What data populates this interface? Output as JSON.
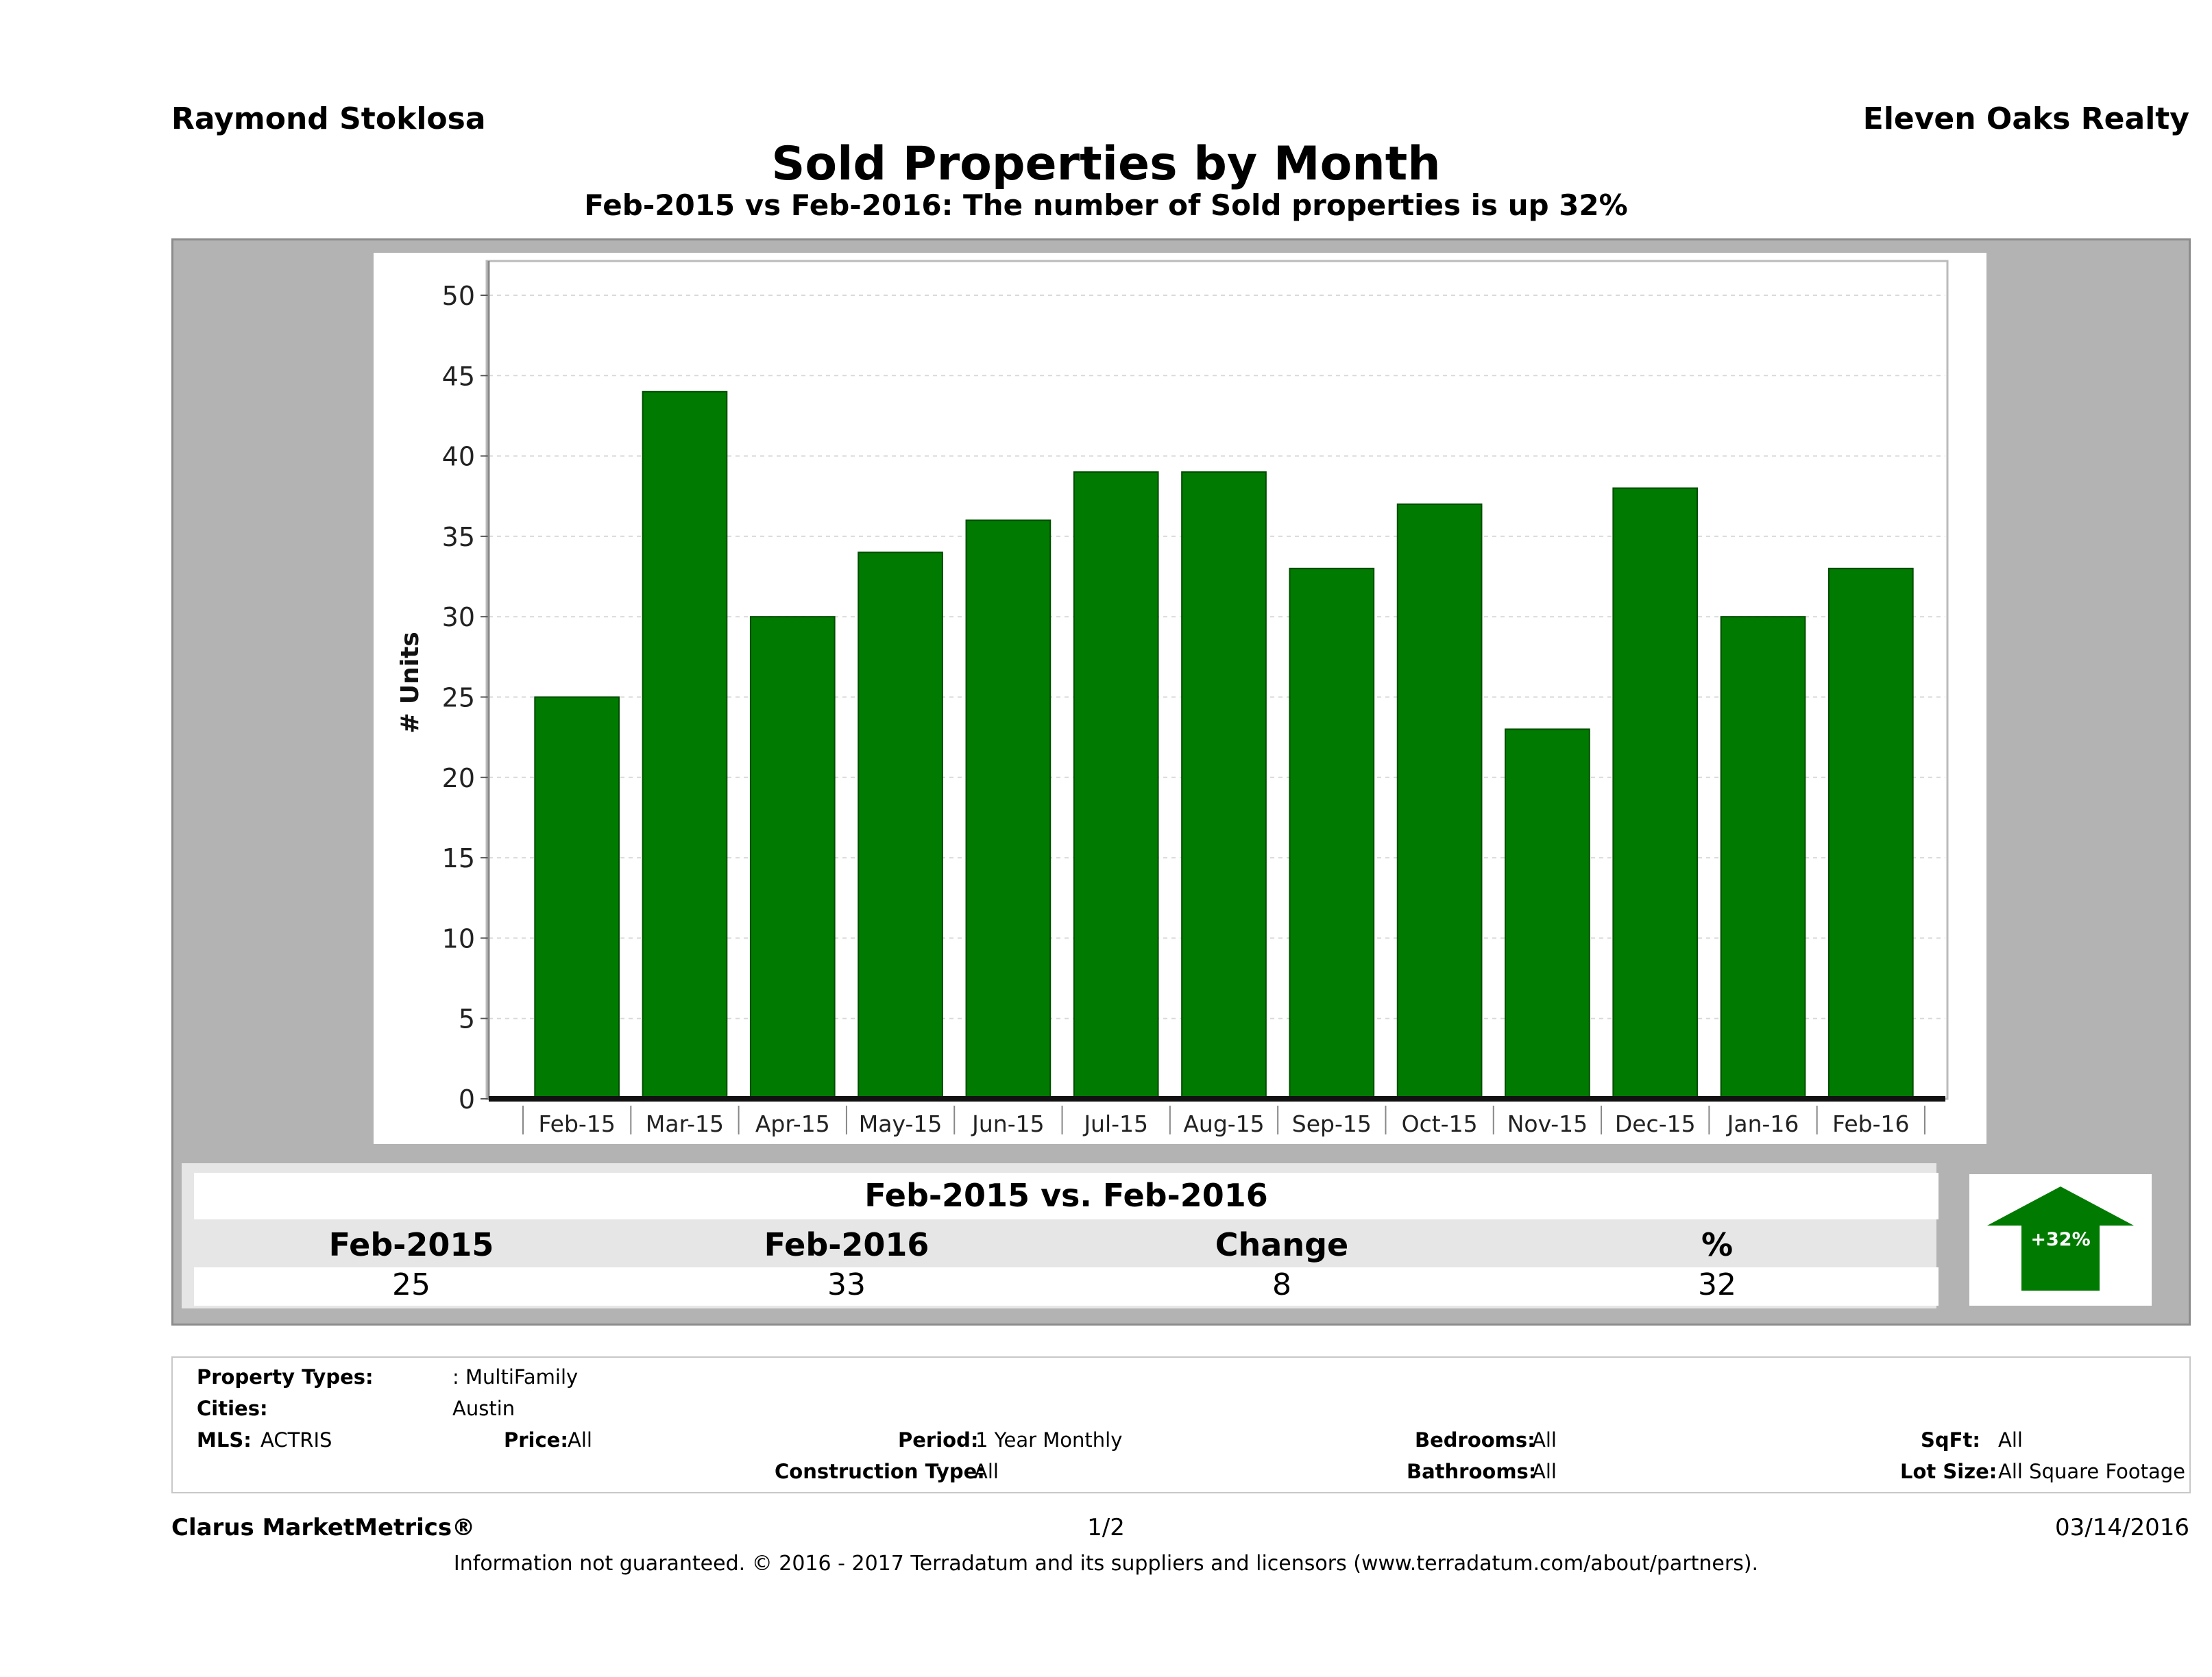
{
  "header": {
    "agent": "Raymond Stoklosa",
    "brokerage": "Eleven Oaks Realty",
    "title": "Sold Properties by Month",
    "subtitle": "Feb-2015 vs Feb-2016: The number of Sold  properties is up 32%"
  },
  "chart_data": {
    "type": "bar",
    "categories": [
      "Feb-15",
      "Mar-15",
      "Apr-15",
      "May-15",
      "Jun-15",
      "Jul-15",
      "Aug-15",
      "Sep-15",
      "Oct-15",
      "Nov-15",
      "Dec-15",
      "Jan-16",
      "Feb-16"
    ],
    "values": [
      25,
      44,
      30,
      34,
      36,
      39,
      39,
      33,
      37,
      23,
      38,
      30,
      33
    ],
    "ylabel": "# Units",
    "ylim": [
      0,
      50
    ],
    "yticks": [
      0,
      5,
      10,
      15,
      20,
      25,
      30,
      35,
      40,
      45,
      50
    ],
    "grid": true,
    "bar_color": "#007a00"
  },
  "summary": {
    "title": "Feb-2015 vs. Feb-2016",
    "columns": [
      {
        "label": "Feb-2015",
        "value": "25"
      },
      {
        "label": "Feb-2016",
        "value": "33"
      },
      {
        "label": "Change",
        "value": "8"
      },
      {
        "label": "%",
        "value": "32"
      }
    ],
    "arrow_label": "+32%",
    "arrow_color": "#007a00"
  },
  "criteria": {
    "property_types_label": "Property Types:",
    "property_types_value": ": MultiFamily",
    "cities_label": "Cities:",
    "cities_value": "Austin",
    "mls_label": "MLS:",
    "mls_value": "ACTRIS",
    "price_label": "Price:",
    "price_value": "All",
    "period_label": "Period:",
    "period_value": "1 Year Monthly",
    "construction_label": "Construction Type:",
    "construction_value": "All",
    "bedrooms_label": "Bedrooms:",
    "bedrooms_value": "All",
    "bathrooms_label": "Bathrooms:",
    "bathrooms_value": "All",
    "sqft_label": "SqFt:",
    "sqft_value": "All",
    "lot_label": "Lot Size:",
    "lot_value": "All Square Footage"
  },
  "footer": {
    "product": "Clarus MarketMetrics®",
    "page": "1/2",
    "date": "03/14/2016",
    "disclaimer": "Information not guaranteed. © 2016 - 2017 Terradatum and its suppliers and licensors (www.terradatum.com/about/partners)."
  }
}
